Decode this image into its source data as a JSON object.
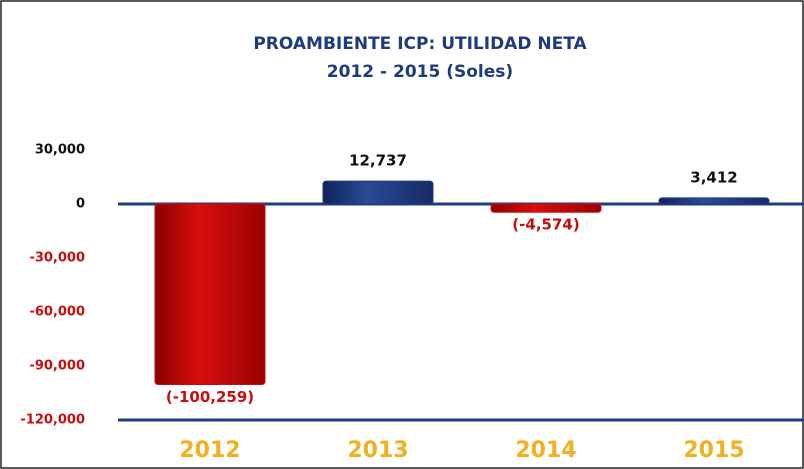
{
  "chart_data": {
    "type": "bar",
    "title": "PROAMBIENTE ICP: UTILIDAD NETA",
    "subtitle": "2012 - 2015 (Soles)",
    "categories": [
      "2012",
      "2013",
      "2014",
      "2015"
    ],
    "values": [
      -100259,
      12737,
      -4574,
      3412
    ],
    "value_labels": [
      "(-100,259)",
      "12,737",
      "(-4,574)",
      "3,412"
    ],
    "positive_color": "#1f3b7f",
    "negative_color": "#c80d0d",
    "category_color": "#f0b020",
    "ylim": [
      -120000,
      30000
    ],
    "yticks": [
      {
        "value": 30000,
        "label": "30,000"
      },
      0,
      {
        "value": -30000,
        "label": "-30,000"
      },
      {
        "value": -60000,
        "label": "-60,000"
      },
      {
        "value": -90000,
        "label": "-90,000"
      },
      {
        "value": -120000,
        "label": "-120,000"
      }
    ]
  }
}
